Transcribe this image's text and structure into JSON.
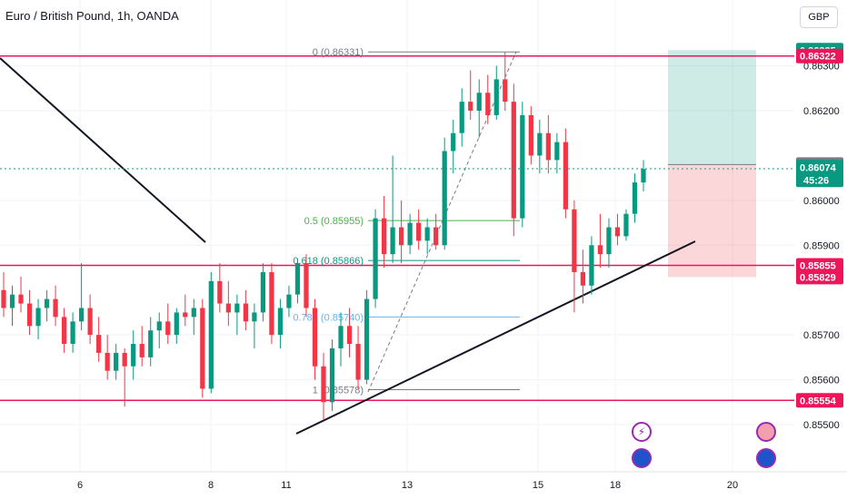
{
  "header": {
    "symbol_title": "Euro / British Pound, 1h, OANDA",
    "currency_button": "GBP"
  },
  "colors": {
    "up": "#089981",
    "down": "#f23645",
    "hline": "#f0145a",
    "trend": "#131722",
    "fib_green": "#4caf50",
    "fib_teal": "#089981",
    "fib_blue": "#64b5f6",
    "fib_gray": "#787b86"
  },
  "chart_data": {
    "type": "candlestick",
    "title": "Euro / British Pound, 1h, OANDA",
    "x_tick_labels": [
      "6",
      "8",
      "11",
      "13",
      "15",
      "18",
      "20"
    ],
    "y_tick_labels": [
      "0.86300",
      "0.86200",
      "0.86000",
      "0.85900",
      "0.85700",
      "0.85600",
      "0.85500"
    ],
    "ylim": [
      0.8544,
      0.8642
    ],
    "price_badges": [
      {
        "label": "0.86335",
        "value": 0.86335,
        "kind": "target"
      },
      {
        "label": "0.86322",
        "value": 0.86322,
        "kind": "level"
      },
      {
        "label": "0.86080",
        "value": 0.8608,
        "kind": "entry"
      },
      {
        "label": "0.86074",
        "value": 0.86074,
        "kind": "last",
        "countdown": "45:26"
      },
      {
        "label": "0.85855",
        "value": 0.85855,
        "kind": "level"
      },
      {
        "label": "0.85829",
        "value": 0.85829,
        "kind": "stop"
      },
      {
        "label": "0.85554",
        "value": 0.85554,
        "kind": "level"
      }
    ],
    "horizontal_levels": [
      0.86322,
      0.85855,
      0.85554
    ],
    "fibonacci": {
      "levels": [
        {
          "label": "0 (0.86331)",
          "value": 0.86331
        },
        {
          "label": "0.5 (0.85955)",
          "value": 0.85955
        },
        {
          "label": "0.618 (0.85866)",
          "value": 0.85866
        },
        {
          "label": "0.786 (0.85740)",
          "value": 0.8574
        },
        {
          "label": "1 (0.85578)",
          "value": 0.85578
        }
      ]
    },
    "position": {
      "entry": 0.8608,
      "target": 0.86335,
      "stop": 0.85829
    },
    "candles": [
      {
        "o": 0.858,
        "h": 0.8584,
        "l": 0.8574,
        "c": 0.8576
      },
      {
        "o": 0.8576,
        "h": 0.8581,
        "l": 0.8572,
        "c": 0.8579
      },
      {
        "o": 0.8579,
        "h": 0.8583,
        "l": 0.8575,
        "c": 0.8577
      },
      {
        "o": 0.8577,
        "h": 0.858,
        "l": 0.857,
        "c": 0.8572
      },
      {
        "o": 0.8572,
        "h": 0.8578,
        "l": 0.8569,
        "c": 0.8576
      },
      {
        "o": 0.8576,
        "h": 0.858,
        "l": 0.8573,
        "c": 0.8578
      },
      {
        "o": 0.8578,
        "h": 0.8581,
        "l": 0.8572,
        "c": 0.8574
      },
      {
        "o": 0.8574,
        "h": 0.8576,
        "l": 0.8566,
        "c": 0.8568
      },
      {
        "o": 0.8568,
        "h": 0.8575,
        "l": 0.8566,
        "c": 0.8573
      },
      {
        "o": 0.8573,
        "h": 0.8586,
        "l": 0.8571,
        "c": 0.8576
      },
      {
        "o": 0.8576,
        "h": 0.8579,
        "l": 0.8568,
        "c": 0.857
      },
      {
        "o": 0.857,
        "h": 0.8574,
        "l": 0.8564,
        "c": 0.8566
      },
      {
        "o": 0.8566,
        "h": 0.857,
        "l": 0.856,
        "c": 0.8562
      },
      {
        "o": 0.8562,
        "h": 0.8568,
        "l": 0.856,
        "c": 0.8566
      },
      {
        "o": 0.8566,
        "h": 0.8567,
        "l": 0.8554,
        "c": 0.8563
      },
      {
        "o": 0.8563,
        "h": 0.8571,
        "l": 0.856,
        "c": 0.8568
      },
      {
        "o": 0.8568,
        "h": 0.8572,
        "l": 0.8563,
        "c": 0.8565
      },
      {
        "o": 0.8565,
        "h": 0.8574,
        "l": 0.8563,
        "c": 0.8571
      },
      {
        "o": 0.8571,
        "h": 0.8575,
        "l": 0.8567,
        "c": 0.8573
      },
      {
        "o": 0.8573,
        "h": 0.8577,
        "l": 0.8568,
        "c": 0.857
      },
      {
        "o": 0.857,
        "h": 0.8576,
        "l": 0.8568,
        "c": 0.8575
      },
      {
        "o": 0.8575,
        "h": 0.8579,
        "l": 0.8572,
        "c": 0.8574
      },
      {
        "o": 0.8574,
        "h": 0.8578,
        "l": 0.857,
        "c": 0.8576
      },
      {
        "o": 0.8576,
        "h": 0.8578,
        "l": 0.8556,
        "c": 0.8558
      },
      {
        "o": 0.8558,
        "h": 0.8584,
        "l": 0.8557,
        "c": 0.8582
      },
      {
        "o": 0.8582,
        "h": 0.8586,
        "l": 0.8575,
        "c": 0.8577
      },
      {
        "o": 0.8577,
        "h": 0.8582,
        "l": 0.8572,
        "c": 0.8575
      },
      {
        "o": 0.8575,
        "h": 0.8579,
        "l": 0.857,
        "c": 0.8577
      },
      {
        "o": 0.8577,
        "h": 0.858,
        "l": 0.8571,
        "c": 0.8573
      },
      {
        "o": 0.8573,
        "h": 0.8577,
        "l": 0.8567,
        "c": 0.8575
      },
      {
        "o": 0.8575,
        "h": 0.8586,
        "l": 0.8573,
        "c": 0.8584
      },
      {
        "o": 0.8584,
        "h": 0.8586,
        "l": 0.8568,
        "c": 0.857
      },
      {
        "o": 0.857,
        "h": 0.8578,
        "l": 0.8567,
        "c": 0.8576
      },
      {
        "o": 0.8576,
        "h": 0.8581,
        "l": 0.8574,
        "c": 0.8579
      },
      {
        "o": 0.8579,
        "h": 0.8587,
        "l": 0.8577,
        "c": 0.8586
      },
      {
        "o": 0.8586,
        "h": 0.8588,
        "l": 0.8574,
        "c": 0.8576
      },
      {
        "o": 0.8576,
        "h": 0.8578,
        "l": 0.856,
        "c": 0.8563
      },
      {
        "o": 0.8563,
        "h": 0.8566,
        "l": 0.8551,
        "c": 0.8555
      },
      {
        "o": 0.8555,
        "h": 0.8569,
        "l": 0.8553,
        "c": 0.8567
      },
      {
        "o": 0.8567,
        "h": 0.8575,
        "l": 0.8563,
        "c": 0.8572
      },
      {
        "o": 0.8572,
        "h": 0.8576,
        "l": 0.8565,
        "c": 0.8568
      },
      {
        "o": 0.8568,
        "h": 0.8572,
        "l": 0.8558,
        "c": 0.856
      },
      {
        "o": 0.856,
        "h": 0.858,
        "l": 0.8559,
        "c": 0.8578
      },
      {
        "o": 0.8578,
        "h": 0.8598,
        "l": 0.8576,
        "c": 0.8596
      },
      {
        "o": 0.8596,
        "h": 0.8601,
        "l": 0.8585,
        "c": 0.8588
      },
      {
        "o": 0.8588,
        "h": 0.861,
        "l": 0.8586,
        "c": 0.8594
      },
      {
        "o": 0.8594,
        "h": 0.86,
        "l": 0.8586,
        "c": 0.859
      },
      {
        "o": 0.859,
        "h": 0.8597,
        "l": 0.8588,
        "c": 0.8595
      },
      {
        "o": 0.8595,
        "h": 0.8598,
        "l": 0.8589,
        "c": 0.8591
      },
      {
        "o": 0.8591,
        "h": 0.8596,
        "l": 0.8588,
        "c": 0.8594
      },
      {
        "o": 0.8594,
        "h": 0.8597,
        "l": 0.8589,
        "c": 0.859
      },
      {
        "o": 0.859,
        "h": 0.8614,
        "l": 0.8589,
        "c": 0.8611
      },
      {
        "o": 0.8611,
        "h": 0.8618,
        "l": 0.8606,
        "c": 0.8615
      },
      {
        "o": 0.8615,
        "h": 0.8625,
        "l": 0.8612,
        "c": 0.8622
      },
      {
        "o": 0.8622,
        "h": 0.8629,
        "l": 0.8618,
        "c": 0.862
      },
      {
        "o": 0.862,
        "h": 0.8627,
        "l": 0.8614,
        "c": 0.8624
      },
      {
        "o": 0.8624,
        "h": 0.8628,
        "l": 0.8617,
        "c": 0.8619
      },
      {
        "o": 0.8619,
        "h": 0.863,
        "l": 0.8618,
        "c": 0.8627
      },
      {
        "o": 0.8627,
        "h": 0.8633,
        "l": 0.862,
        "c": 0.8622
      },
      {
        "o": 0.8622,
        "h": 0.8626,
        "l": 0.8592,
        "c": 0.8596
      },
      {
        "o": 0.8596,
        "h": 0.8622,
        "l": 0.8594,
        "c": 0.8619
      },
      {
        "o": 0.8619,
        "h": 0.8621,
        "l": 0.8608,
        "c": 0.861
      },
      {
        "o": 0.861,
        "h": 0.8618,
        "l": 0.8606,
        "c": 0.8615
      },
      {
        "o": 0.8615,
        "h": 0.8619,
        "l": 0.8606,
        "c": 0.8609
      },
      {
        "o": 0.8609,
        "h": 0.8615,
        "l": 0.8606,
        "c": 0.8613
      },
      {
        "o": 0.8613,
        "h": 0.8616,
        "l": 0.8596,
        "c": 0.8598
      },
      {
        "o": 0.8598,
        "h": 0.86,
        "l": 0.8575,
        "c": 0.8584
      },
      {
        "o": 0.8584,
        "h": 0.8589,
        "l": 0.8577,
        "c": 0.8581
      },
      {
        "o": 0.8581,
        "h": 0.8592,
        "l": 0.8579,
        "c": 0.859
      },
      {
        "o": 0.859,
        "h": 0.8597,
        "l": 0.8585,
        "c": 0.8588
      },
      {
        "o": 0.8588,
        "h": 0.8596,
        "l": 0.8585,
        "c": 0.8594
      },
      {
        "o": 0.8594,
        "h": 0.8597,
        "l": 0.859,
        "c": 0.8592
      },
      {
        "o": 0.8592,
        "h": 0.8598,
        "l": 0.8591,
        "c": 0.8597
      },
      {
        "o": 0.8597,
        "h": 0.8606,
        "l": 0.8595,
        "c": 0.8604
      },
      {
        "o": 0.8604,
        "h": 0.8609,
        "l": 0.8602,
        "c": 0.8607
      }
    ]
  }
}
